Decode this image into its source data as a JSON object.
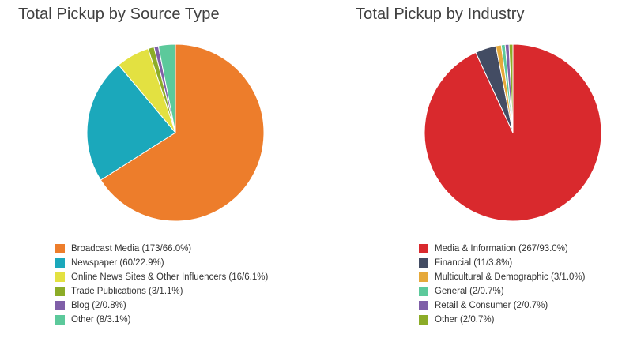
{
  "chart_data": [
    {
      "type": "pie",
      "title": "Total Pickup by Source Type",
      "slices": [
        {
          "label": "Broadcast Media",
          "count": 173,
          "percent": "66.0%",
          "value": 66.0,
          "color": "#ed7d2b"
        },
        {
          "label": "Newspaper",
          "count": 60,
          "percent": "22.9%",
          "value": 22.9,
          "color": "#1ba8bb"
        },
        {
          "label": "Online News Sites & Other Influencers",
          "count": 16,
          "percent": "6.1%",
          "value": 6.1,
          "color": "#e3e141"
        },
        {
          "label": "Trade Publications",
          "count": 3,
          "percent": "1.1%",
          "value": 1.1,
          "color": "#8cac28"
        },
        {
          "label": "Blog",
          "count": 2,
          "percent": "0.8%",
          "value": 0.8,
          "color": "#7f5fa8"
        },
        {
          "label": "Other",
          "count": 8,
          "percent": "3.1%",
          "value": 3.1,
          "color": "#5cc99b"
        }
      ]
    },
    {
      "type": "pie",
      "title": "Total Pickup by Industry",
      "slices": [
        {
          "label": "Media & Information",
          "count": 267,
          "percent": "93.0%",
          "value": 93.0,
          "color": "#d9292d"
        },
        {
          "label": "Financial",
          "count": 11,
          "percent": "3.8%",
          "value": 3.8,
          "color": "#434c63"
        },
        {
          "label": "Multicultural & Demographic",
          "count": 3,
          "percent": "1.0%",
          "value": 1.0,
          "color": "#e6a93a"
        },
        {
          "label": "General",
          "count": 2,
          "percent": "0.7%",
          "value": 0.7,
          "color": "#5cc99b"
        },
        {
          "label": "Retail & Consumer",
          "count": 2,
          "percent": "0.7%",
          "value": 0.7,
          "color": "#7f5fa8"
        },
        {
          "label": "Other",
          "count": 2,
          "percent": "0.7%",
          "value": 0.7,
          "color": "#8cac28"
        }
      ]
    }
  ]
}
